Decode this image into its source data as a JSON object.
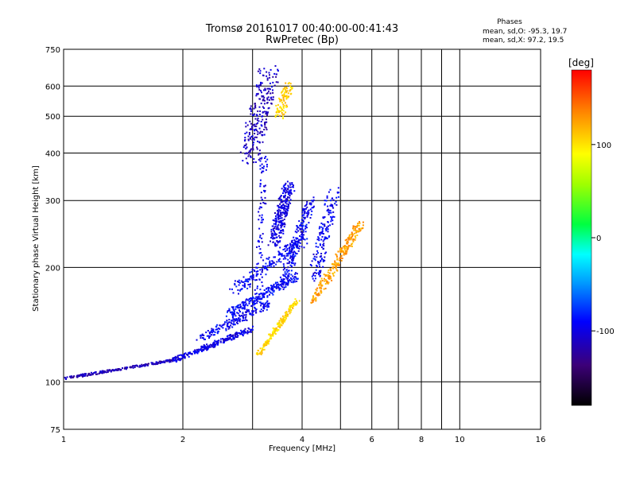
{
  "chart_data": {
    "type": "scatter",
    "title": "Tromsø 20161017 00:40:00-00:41:43",
    "subtitle": "RwPretec (Bp)",
    "xlabel": "Frequency [MHz]",
    "ylabel": "Stationary phase Virtual Height [km]",
    "x_scale": "log",
    "y_scale": "log",
    "xlim": [
      1,
      16
    ],
    "ylim": [
      75,
      750
    ],
    "x_ticks": [
      1,
      2,
      4,
      6,
      8,
      10,
      16
    ],
    "x_minor_grid": [
      3,
      5,
      7,
      9
    ],
    "y_ticks": [
      75,
      100,
      200,
      300,
      400,
      500,
      600,
      750
    ],
    "grid": true,
    "stats": {
      "heading": "Phases",
      "line_o": "mean, sd,O: -95.3, 19.7",
      "line_x": "mean, sd,X:  97.2, 19.5"
    },
    "colorbar": {
      "label": "[deg]",
      "range": [
        -180,
        180
      ],
      "ticks": [
        100,
        0,
        -100
      ],
      "position": "right"
    },
    "trace_segments": [
      {
        "x0": 1.0,
        "x1": 1.9,
        "y0": 102,
        "y1": 114,
        "phase": -115,
        "count": 220,
        "spread": 3
      },
      {
        "x0": 1.9,
        "x1": 3.0,
        "y0": 114,
        "y1": 138,
        "phase": -100,
        "count": 260,
        "spread": 6
      },
      {
        "x0": 2.2,
        "x1": 3.3,
        "y0": 130,
        "y1": 160,
        "phase": -95,
        "count": 180,
        "spread": 10
      },
      {
        "x0": 2.6,
        "x1": 3.9,
        "y0": 150,
        "y1": 190,
        "phase": -90,
        "count": 240,
        "spread": 10
      },
      {
        "x0": 2.7,
        "x1": 4.0,
        "y0": 175,
        "y1": 235,
        "phase": -92,
        "count": 180,
        "spread": 14
      },
      {
        "x0": 3.6,
        "x1": 4.2,
        "y0": 185,
        "y1": 300,
        "phase": -95,
        "count": 200,
        "spread": 12
      },
      {
        "x0": 3.4,
        "x1": 3.7,
        "y0": 230,
        "y1": 330,
        "phase": -100,
        "count": 260,
        "spread": 15
      },
      {
        "x0": 3.1,
        "x1": 3.2,
        "y0": 170,
        "y1": 390,
        "phase": -98,
        "count": 80,
        "spread": 10
      },
      {
        "x0": 2.95,
        "x1": 3.3,
        "y0": 390,
        "y1": 640,
        "phase": -110,
        "count": 240,
        "spread": 25
      },
      {
        "x0": 4.3,
        "x1": 4.8,
        "y0": 185,
        "y1": 320,
        "phase": -95,
        "count": 160,
        "spread": 15
      },
      {
        "x0": 3.1,
        "x1": 3.9,
        "y0": 118,
        "y1": 165,
        "phase": 105,
        "count": 180,
        "spread": 6
      },
      {
        "x0": 4.3,
        "x1": 5.6,
        "y0": 165,
        "y1": 260,
        "phase": 125,
        "count": 260,
        "spread": 10
      },
      {
        "x0": 3.5,
        "x1": 3.7,
        "y0": 500,
        "y1": 610,
        "phase": 108,
        "count": 90,
        "spread": 12
      }
    ]
  }
}
